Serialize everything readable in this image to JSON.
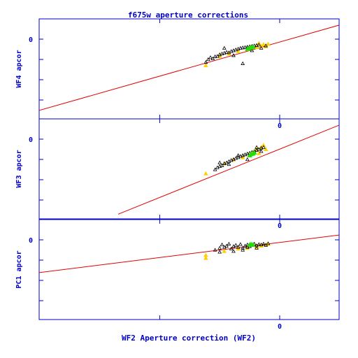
{
  "chart_data": {
    "type": "scatter",
    "title": "f675w aperture corrections",
    "xlabel": "WF2 Aperture correction (WF2)",
    "x_tick_labels": [
      "0"
    ],
    "colors": {
      "axes": "#0000c8",
      "fit": "#e00000",
      "triangles": "#000000",
      "yellow": "#ffd000",
      "green": "#22dd00"
    },
    "panels": [
      {
        "ylabel": "WF4 apcor",
        "y_tick_labels": [
          "0"
        ],
        "fit_line": {
          "x": [
            -0.55,
            0.13
          ],
          "y": [
            -0.185,
            0.035
          ]
        },
        "points": [
          [
            -0.16,
            -0.057
          ],
          [
            -0.155,
            -0.05
          ],
          [
            -0.15,
            -0.045
          ],
          [
            -0.145,
            -0.048
          ],
          [
            -0.14,
            -0.043
          ],
          [
            -0.135,
            -0.042
          ],
          [
            -0.13,
            -0.038
          ],
          [
            -0.125,
            -0.036
          ],
          [
            -0.12,
            -0.034
          ],
          [
            -0.115,
            -0.032
          ],
          [
            -0.11,
            -0.033
          ],
          [
            -0.105,
            -0.03
          ],
          [
            -0.1,
            -0.028
          ],
          [
            -0.095,
            -0.026
          ],
          [
            -0.09,
            -0.024
          ],
          [
            -0.085,
            -0.022
          ],
          [
            -0.08,
            -0.021
          ],
          [
            -0.075,
            -0.02
          ],
          [
            -0.07,
            -0.019
          ],
          [
            -0.065,
            -0.018
          ],
          [
            -0.06,
            -0.017
          ],
          [
            -0.055,
            -0.016
          ],
          [
            -0.05,
            -0.015
          ],
          [
            -0.045,
            -0.014
          ],
          [
            -0.12,
            -0.022
          ],
          [
            -0.08,
            -0.06
          ],
          [
            -0.1,
            -0.04
          ],
          [
            -0.06,
            -0.028
          ],
          [
            -0.04,
            -0.022
          ],
          [
            -0.03,
            -0.016
          ]
        ],
        "yellow_points": [
          [
            -0.16,
            -0.065
          ],
          [
            -0.13,
            -0.042
          ],
          [
            -0.11,
            -0.036
          ],
          [
            -0.09,
            -0.03
          ],
          [
            -0.07,
            -0.025
          ],
          [
            -0.05,
            -0.02
          ],
          [
            -0.04,
            -0.017
          ],
          [
            -0.035,
            -0.013
          ],
          [
            -0.03,
            -0.018
          ],
          [
            -0.045,
            -0.01
          ],
          [
            -0.025,
            -0.012
          ]
        ],
        "green_points": [
          [
            -0.07,
            -0.024
          ],
          [
            -0.066,
            -0.022
          ],
          [
            -0.062,
            -0.021
          ],
          [
            -0.058,
            -0.019
          ]
        ]
      },
      {
        "ylabel": "WF3 apcor",
        "y_tick_labels": [
          "0"
        ],
        "fit_line": {
          "x": [
            -0.35,
            0.13
          ],
          "y": [
            -0.185,
            0.035
          ]
        },
        "points": [
          [
            -0.14,
            -0.075
          ],
          [
            -0.135,
            -0.07
          ],
          [
            -0.13,
            -0.067
          ],
          [
            -0.125,
            -0.065
          ],
          [
            -0.12,
            -0.06
          ],
          [
            -0.115,
            -0.058
          ],
          [
            -0.11,
            -0.055
          ],
          [
            -0.105,
            -0.052
          ],
          [
            -0.1,
            -0.05
          ],
          [
            -0.095,
            -0.047
          ],
          [
            -0.09,
            -0.045
          ],
          [
            -0.085,
            -0.042
          ],
          [
            -0.08,
            -0.04
          ],
          [
            -0.075,
            -0.038
          ],
          [
            -0.07,
            -0.036
          ],
          [
            -0.065,
            -0.034
          ],
          [
            -0.06,
            -0.032
          ],
          [
            -0.055,
            -0.03
          ],
          [
            -0.05,
            -0.027
          ],
          [
            -0.045,
            -0.025
          ],
          [
            -0.04,
            -0.022
          ],
          [
            -0.035,
            -0.02
          ],
          [
            -0.13,
            -0.058
          ],
          [
            -0.11,
            -0.062
          ],
          [
            -0.09,
            -0.04
          ],
          [
            -0.07,
            -0.05
          ],
          [
            -0.05,
            -0.02
          ],
          [
            -0.04,
            -0.03
          ]
        ],
        "yellow_points": [
          [
            -0.16,
            -0.085
          ],
          [
            -0.12,
            -0.06
          ],
          [
            -0.1,
            -0.05
          ],
          [
            -0.08,
            -0.045
          ],
          [
            -0.06,
            -0.035
          ],
          [
            -0.05,
            -0.025
          ],
          [
            -0.04,
            -0.02
          ],
          [
            -0.035,
            -0.015
          ],
          [
            -0.03,
            -0.025
          ],
          [
            -0.045,
            -0.035
          ]
        ],
        "green_points": [
          [
            -0.065,
            -0.04
          ],
          [
            -0.062,
            -0.037
          ],
          [
            -0.058,
            -0.036
          ],
          [
            -0.055,
            -0.033
          ]
        ]
      },
      {
        "ylabel": "PC1 apcor",
        "y_tick_labels": [
          "0"
        ],
        "fit_line": {
          "x": [
            -0.55,
            0.13
          ],
          "y": [
            -0.085,
            0.012
          ]
        },
        "points": [
          [
            -0.14,
            -0.025
          ],
          [
            -0.13,
            -0.02
          ],
          [
            -0.125,
            -0.012
          ],
          [
            -0.12,
            -0.018
          ],
          [
            -0.115,
            -0.015
          ],
          [
            -0.11,
            -0.01
          ],
          [
            -0.105,
            -0.022
          ],
          [
            -0.1,
            -0.016
          ],
          [
            -0.095,
            -0.013
          ],
          [
            -0.09,
            -0.018
          ],
          [
            -0.085,
            -0.011
          ],
          [
            -0.08,
            -0.02
          ],
          [
            -0.075,
            -0.015
          ],
          [
            -0.07,
            -0.012
          ],
          [
            -0.065,
            -0.016
          ],
          [
            -0.06,
            -0.013
          ],
          [
            -0.055,
            -0.01
          ],
          [
            -0.05,
            -0.014
          ],
          [
            -0.045,
            -0.011
          ],
          [
            -0.04,
            -0.012
          ],
          [
            -0.035,
            -0.01
          ],
          [
            -0.03,
            -0.013
          ],
          [
            -0.025,
            -0.009
          ],
          [
            -0.13,
            -0.03
          ],
          [
            -0.1,
            -0.028
          ],
          [
            -0.08,
            -0.025
          ],
          [
            -0.07,
            -0.018
          ],
          [
            -0.05,
            -0.02
          ]
        ],
        "yellow_points": [
          [
            -0.16,
            -0.038
          ],
          [
            -0.16,
            -0.045
          ],
          [
            -0.12,
            -0.028
          ],
          [
            -0.09,
            -0.022
          ],
          [
            -0.07,
            -0.02
          ],
          [
            -0.05,
            -0.017
          ],
          [
            -0.04,
            -0.015
          ],
          [
            -0.03,
            -0.012
          ],
          [
            -0.025,
            -0.01
          ]
        ],
        "green_points": [
          [
            -0.065,
            -0.012
          ],
          [
            -0.062,
            -0.011
          ],
          [
            -0.058,
            -0.012
          ]
        ]
      }
    ]
  }
}
